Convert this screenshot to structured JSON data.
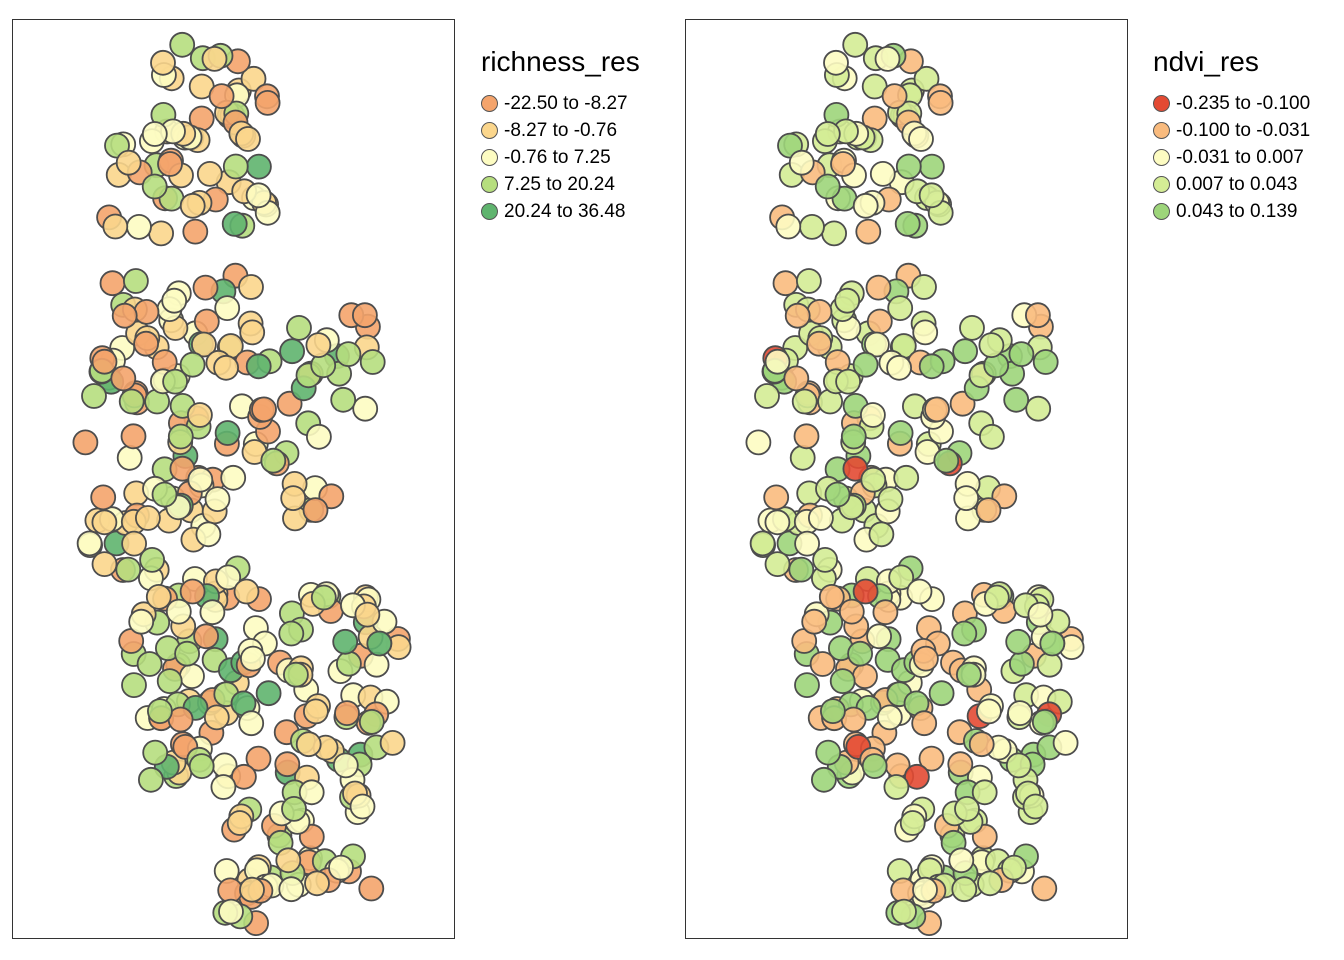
{
  "maps": [
    {
      "id": "richness",
      "legend_title": "richness_res",
      "classes": [
        {
          "label": "-22.50 to -8.27",
          "color": "#f4a46c"
        },
        {
          "label": "-8.27 to -0.76",
          "color": "#fbd68c"
        },
        {
          "label": "-0.76 to 7.25",
          "color": "#fdfcc2"
        },
        {
          "label": "7.25 to 20.24",
          "color": "#b6de7e"
        },
        {
          "label": "20.24 to 36.48",
          "color": "#5fb46e"
        }
      ]
    },
    {
      "id": "ndvi",
      "legend_title": "ndvi_res",
      "classes": [
        {
          "label": "-0.235 to -0.100",
          "color": "#e34a33"
        },
        {
          "label": "-0.100 to -0.031",
          "color": "#f9bb7e"
        },
        {
          "label": "-0.031 to 0.007",
          "color": "#fdfcc2"
        },
        {
          "label": "0.007 to 0.043",
          "color": "#d4ec95"
        },
        {
          "label": "0.043 to 0.139",
          "color": "#9dd57a"
        }
      ]
    }
  ]
}
